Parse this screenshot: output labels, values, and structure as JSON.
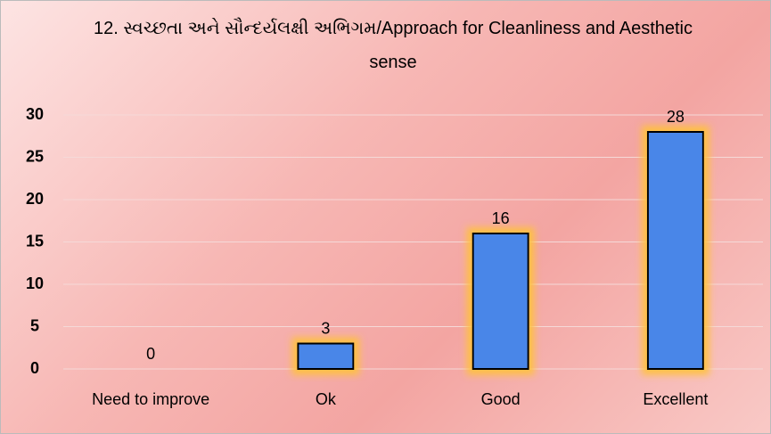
{
  "chart_data": {
    "type": "bar",
    "title": "12. સ્વચ્છતા અને સૌન્દર્યલક્ષી અભિગમ/Approach for Cleanliness and Aesthetic sense",
    "categories": [
      "Need to improve",
      "Ok",
      "Good",
      "Excellent"
    ],
    "values": [
      0,
      3,
      16,
      28
    ],
    "color": "#4a86e8",
    "ylim": [
      0,
      30
    ],
    "yticks": [
      0,
      5,
      10,
      15,
      20,
      25,
      30
    ],
    "grid": true
  }
}
